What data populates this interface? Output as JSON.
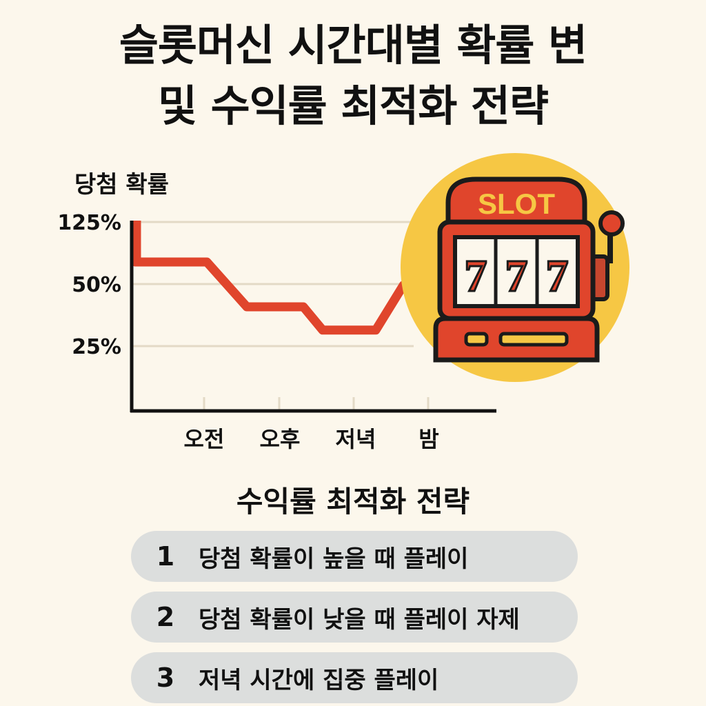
{
  "title": {
    "line1": "슬롯머신 시간대별 확률 변",
    "line2": "및 수익률 최적화 전략"
  },
  "chart_data": {
    "type": "line",
    "ylabel": "당첨 확률",
    "yticks": [
      "125%",
      "50%",
      "25%"
    ],
    "categories": [
      "오전",
      "오후",
      "저녁",
      "밤"
    ],
    "series": [
      {
        "values": [
          75,
          50,
          37,
          62
        ]
      }
    ],
    "line_color": "#e0452c",
    "grid": true
  },
  "illustration": {
    "slot_label": "SLOT",
    "reels": [
      "7",
      "7",
      "7"
    ]
  },
  "strategy": {
    "title": "수익률 최적화 전략",
    "items": [
      {
        "num": "1",
        "text": "당첨 확률이 높을 때 플레이"
      },
      {
        "num": "2",
        "text": "당첨 확률이 낮을 때 플레이 자제"
      },
      {
        "num": "3",
        "text": "저녁 시간에 집중 플레이"
      }
    ]
  }
}
